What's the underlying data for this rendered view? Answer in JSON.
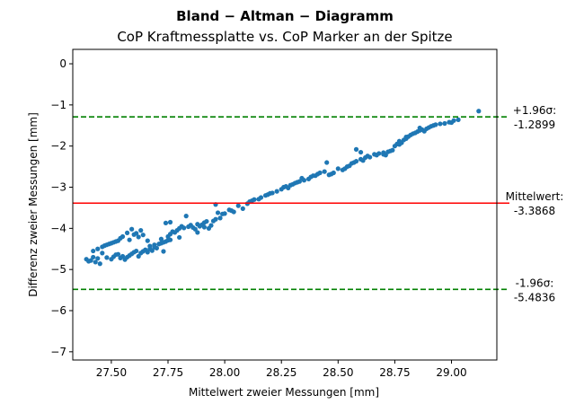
{
  "chart_data": {
    "type": "scatter",
    "title": "Bland − Altman − Diagramm",
    "subtitle": "CoP Kraftmessplatte vs. CoP Marker an der Spitze",
    "xlabel": "Mittelwert zweier Messungen [mm]",
    "ylabel": "Differenz zweier Messungen [mm]",
    "xlim": [
      27.33,
      29.2
    ],
    "ylim": [
      -7.2,
      0.35
    ],
    "xticks": [
      27.5,
      27.75,
      28.0,
      28.25,
      28.5,
      28.75,
      29.0
    ],
    "xtick_labels": [
      "27.50",
      "27.75",
      "28.00",
      "28.25",
      "28.50",
      "28.75",
      "29.00"
    ],
    "yticks": [
      0,
      -1,
      -2,
      -3,
      -4,
      -5,
      -6,
      -7
    ],
    "ytick_labels": [
      "0",
      "−1",
      "−2",
      "−3",
      "−4",
      "−5",
      "−6",
      "−7"
    ],
    "grid": false,
    "point_color": "#1f77b4",
    "reference_lines": [
      {
        "name": "upper_loa",
        "y": -1.2899,
        "color": "#008000",
        "style": "dashed",
        "label_line1": "+1.96σ:",
        "label_line2": "-1.2899"
      },
      {
        "name": "mean",
        "y": -3.3868,
        "color": "#ff0000",
        "style": "solid",
        "label_line1": "Mittelwert:",
        "label_line2": "-3.3868"
      },
      {
        "name": "lower_loa",
        "y": -5.4836,
        "color": "#008000",
        "style": "dashed",
        "label_line1": "-1.96σ:",
        "label_line2": "-5.4836"
      }
    ],
    "points": [
      [
        27.39,
        -4.75
      ],
      [
        27.4,
        -4.8
      ],
      [
        27.41,
        -4.78
      ],
      [
        27.42,
        -4.7
      ],
      [
        27.43,
        -4.82
      ],
      [
        27.44,
        -4.73
      ],
      [
        27.45,
        -4.86
      ],
      [
        27.46,
        -4.6
      ],
      [
        27.42,
        -4.55
      ],
      [
        27.44,
        -4.5
      ],
      [
        27.46,
        -4.45
      ],
      [
        27.47,
        -4.42
      ],
      [
        27.48,
        -4.4
      ],
      [
        27.49,
        -4.38
      ],
      [
        27.5,
        -4.36
      ],
      [
        27.51,
        -4.34
      ],
      [
        27.48,
        -4.71
      ],
      [
        27.5,
        -4.75
      ],
      [
        27.51,
        -4.69
      ],
      [
        27.52,
        -4.64
      ],
      [
        27.53,
        -4.63
      ],
      [
        27.53,
        -4.3
      ],
      [
        27.54,
        -4.24
      ],
      [
        27.55,
        -4.2
      ],
      [
        27.54,
        -4.72
      ],
      [
        27.55,
        -4.68
      ],
      [
        27.56,
        -4.76
      ],
      [
        27.57,
        -4.7
      ],
      [
        27.57,
        -4.11
      ],
      [
        27.58,
        -4.28
      ],
      [
        27.59,
        -4.02
      ],
      [
        27.6,
        -4.15
      ],
      [
        27.58,
        -4.66
      ],
      [
        27.59,
        -4.62
      ],
      [
        27.6,
        -4.58
      ],
      [
        27.61,
        -4.55
      ],
      [
        27.62,
        -4.68
      ],
      [
        27.62,
        -4.21
      ],
      [
        27.63,
        -4.05
      ],
      [
        27.64,
        -4.16
      ],
      [
        27.63,
        -4.6
      ],
      [
        27.64,
        -4.56
      ],
      [
        27.65,
        -4.52
      ],
      [
        27.66,
        -4.58
      ],
      [
        27.67,
        -4.5
      ],
      [
        27.67,
        -4.43
      ],
      [
        27.68,
        -4.54
      ],
      [
        27.69,
        -4.46
      ],
      [
        27.7,
        -4.48
      ],
      [
        27.71,
        -4.38
      ],
      [
        27.72,
        -4.36
      ],
      [
        27.73,
        -4.34
      ],
      [
        27.73,
        -4.56
      ],
      [
        27.74,
        -4.32
      ],
      [
        27.75,
        -4.29
      ],
      [
        27.76,
        -4.28
      ],
      [
        27.75,
        -4.2
      ],
      [
        27.76,
        -4.14
      ],
      [
        27.77,
        -4.08
      ],
      [
        27.78,
        -4.1
      ],
      [
        27.79,
        -4.05
      ],
      [
        27.8,
        -4.22
      ],
      [
        27.81,
        -3.95
      ],
      [
        27.82,
        -3.99
      ],
      [
        27.74,
        -3.87
      ],
      [
        27.76,
        -3.85
      ],
      [
        27.83,
        -3.7
      ],
      [
        27.84,
        -3.96
      ],
      [
        27.85,
        -3.92
      ],
      [
        27.86,
        -3.98
      ],
      [
        27.87,
        -4.02
      ],
      [
        27.88,
        -4.1
      ],
      [
        27.89,
        -3.95
      ],
      [
        27.9,
        -3.91
      ],
      [
        27.91,
        -3.86
      ],
      [
        27.92,
        -3.83
      ],
      [
        27.93,
        -4.0
      ],
      [
        27.94,
        -3.93
      ],
      [
        27.95,
        -3.82
      ],
      [
        27.96,
        -3.78
      ],
      [
        27.96,
        -3.42
      ],
      [
        27.97,
        -3.62
      ],
      [
        27.98,
        -3.75
      ],
      [
        27.99,
        -3.65
      ],
      [
        28.0,
        -3.64
      ],
      [
        28.02,
        -3.55
      ],
      [
        28.03,
        -3.57
      ],
      [
        28.04,
        -3.6
      ],
      [
        28.06,
        -3.45
      ],
      [
        28.08,
        -3.52
      ],
      [
        28.1,
        -3.4
      ],
      [
        28.11,
        -3.35
      ],
      [
        28.12,
        -3.33
      ],
      [
        28.13,
        -3.3
      ],
      [
        28.15,
        -3.29
      ],
      [
        28.16,
        -3.25
      ],
      [
        28.18,
        -3.2
      ],
      [
        28.19,
        -3.18
      ],
      [
        28.2,
        -3.15
      ],
      [
        28.21,
        -3.14
      ],
      [
        28.23,
        -3.1
      ],
      [
        28.25,
        -3.05
      ],
      [
        28.26,
        -3.0
      ],
      [
        28.27,
        -2.98
      ],
      [
        28.28,
        -3.02
      ],
      [
        28.29,
        -2.95
      ],
      [
        28.3,
        -2.93
      ],
      [
        28.31,
        -2.9
      ],
      [
        28.32,
        -2.88
      ],
      [
        28.33,
        -2.86
      ],
      [
        28.35,
        -2.83
      ],
      [
        28.37,
        -2.8
      ],
      [
        28.38,
        -2.75
      ],
      [
        28.39,
        -2.72
      ],
      [
        28.4,
        -2.72
      ],
      [
        28.41,
        -2.68
      ],
      [
        28.42,
        -2.65
      ],
      [
        28.44,
        -2.62
      ],
      [
        28.46,
        -2.7
      ],
      [
        28.47,
        -2.68
      ],
      [
        28.48,
        -2.65
      ],
      [
        28.5,
        -2.55
      ],
      [
        28.52,
        -2.58
      ],
      [
        28.54,
        -2.5
      ],
      [
        28.55,
        -2.48
      ],
      [
        28.56,
        -2.42
      ],
      [
        28.57,
        -2.4
      ],
      [
        28.58,
        -2.37
      ],
      [
        28.6,
        -2.32
      ],
      [
        28.61,
        -2.35
      ],
      [
        28.62,
        -2.28
      ],
      [
        28.63,
        -2.24
      ],
      [
        28.64,
        -2.27
      ],
      [
        28.66,
        -2.2
      ],
      [
        28.67,
        -2.22
      ],
      [
        28.68,
        -2.18
      ],
      [
        28.7,
        -2.16
      ],
      [
        28.71,
        -2.22
      ],
      [
        28.72,
        -2.14
      ],
      [
        28.73,
        -2.12
      ],
      [
        28.74,
        -2.1
      ],
      [
        28.75,
        -2.0
      ],
      [
        28.76,
        -1.95
      ],
      [
        28.77,
        -1.96
      ],
      [
        28.78,
        -1.92
      ],
      [
        28.79,
        -1.85
      ],
      [
        28.8,
        -1.82
      ],
      [
        28.8,
        -1.78
      ],
      [
        28.81,
        -1.77
      ],
      [
        28.82,
        -1.73
      ],
      [
        28.83,
        -1.7
      ],
      [
        28.84,
        -1.68
      ],
      [
        28.85,
        -1.65
      ],
      [
        28.86,
        -1.62
      ],
      [
        28.87,
        -1.6
      ],
      [
        28.88,
        -1.64
      ],
      [
        28.89,
        -1.58
      ],
      [
        28.9,
        -1.55
      ],
      [
        28.91,
        -1.52
      ],
      [
        28.92,
        -1.5
      ],
      [
        28.93,
        -1.48
      ],
      [
        28.95,
        -1.46
      ],
      [
        28.97,
        -1.45
      ],
      [
        28.99,
        -1.42
      ],
      [
        29.0,
        -1.43
      ],
      [
        29.01,
        -1.38
      ],
      [
        29.03,
        -1.36
      ],
      [
        29.12,
        -1.15
      ],
      [
        28.58,
        -2.08
      ],
      [
        28.6,
        -2.15
      ],
      [
        28.7,
        -2.2
      ],
      [
        28.77,
        -1.88
      ],
      [
        28.86,
        -1.56
      ],
      [
        28.45,
        -2.4
      ],
      [
        28.53,
        -2.55
      ],
      [
        28.34,
        -2.78
      ],
      [
        27.61,
        -4.12
      ],
      [
        27.66,
        -4.3
      ],
      [
        27.69,
        -4.4
      ],
      [
        27.72,
        -4.26
      ],
      [
        27.8,
        -4.0
      ],
      [
        27.88,
        -3.9
      ],
      [
        27.91,
        -3.97
      ],
      [
        27.52,
        -4.32
      ]
    ]
  }
}
